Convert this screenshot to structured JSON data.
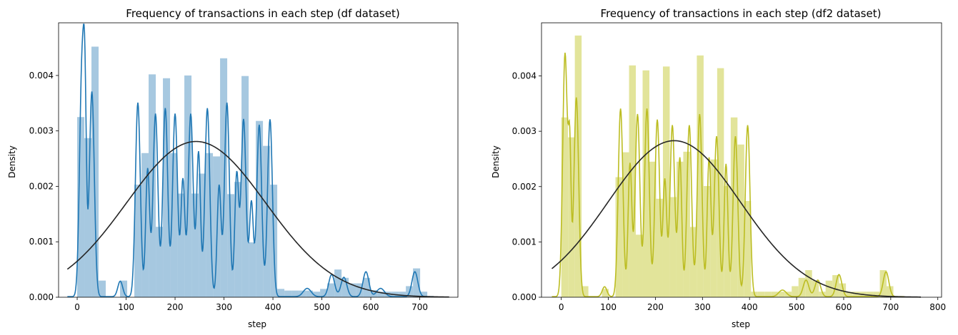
{
  "chart_data": [
    {
      "type": "histogram-with-kde",
      "title": "Frequency of transactions in each step (df dataset)",
      "xlabel": "step",
      "ylabel": "Density",
      "xlim": [
        -38,
        778
      ],
      "ylim": [
        0,
        0.00495
      ],
      "xticks": [
        0,
        100,
        200,
        300,
        400,
        500,
        600,
        700
      ],
      "yticks": [
        0.0,
        0.001,
        0.002,
        0.003,
        0.004
      ],
      "ytick_labels": [
        "0.000",
        "0.001",
        "0.002",
        "0.003",
        "0.004"
      ],
      "hist_color": "#a6c8e0",
      "kde_color": "#1f77b4",
      "normal_color": "#262626",
      "bin_start": 0,
      "bin_width": 14.6,
      "hist_values": [
        0.00325,
        0.00287,
        0.00452,
        0.0003,
        0.0,
        0.0,
        0.0003,
        0.0,
        0.00203,
        0.0026,
        0.00402,
        0.00127,
        0.00395,
        0.0026,
        0.00187,
        0.004,
        0.00187,
        0.00223,
        0.0026,
        0.00254,
        0.00431,
        0.00186,
        0.00208,
        0.00399,
        0.00099,
        0.00318,
        0.00273,
        0.00203,
        0.00015,
        0.00012,
        0.00012,
        0.00012,
        0.00012,
        0.0001,
        0.00015,
        0.00025,
        0.0005,
        0.00035,
        0.00025,
        0.00025,
        0.00035,
        0.00013,
        0.0001,
        0.0001,
        0.0001,
        0.0001,
        0.0002,
        0.00052,
        0.0001
      ],
      "kde_peaks": [
        [
          -10,
          0.0,
          6
        ],
        [
          10,
          0.0042,
          5
        ],
        [
          16,
          0.0023,
          3
        ],
        [
          30,
          0.0037,
          5
        ],
        [
          88,
          0.00028,
          5
        ],
        [
          124,
          0.0035,
          5
        ],
        [
          144,
          0.0023,
          4
        ],
        [
          160,
          0.0033,
          5
        ],
        [
          180,
          0.0034,
          5
        ],
        [
          200,
          0.0033,
          5
        ],
        [
          216,
          0.0021,
          4
        ],
        [
          232,
          0.0033,
          5
        ],
        [
          248,
          0.0026,
          4
        ],
        [
          266,
          0.0034,
          5
        ],
        [
          290,
          0.002,
          4
        ],
        [
          306,
          0.0035,
          5
        ],
        [
          326,
          0.0022,
          4
        ],
        [
          340,
          0.0032,
          5
        ],
        [
          356,
          0.0017,
          4
        ],
        [
          372,
          0.0031,
          5
        ],
        [
          394,
          0.0032,
          5
        ],
        [
          470,
          0.00015,
          8
        ],
        [
          520,
          0.0004,
          6
        ],
        [
          545,
          0.00035,
          6
        ],
        [
          590,
          0.00045,
          6
        ],
        [
          620,
          0.00015,
          8
        ],
        [
          690,
          0.00045,
          6
        ]
      ],
      "normal_mean": 243,
      "normal_sd": 142,
      "normal_range": [
        -20,
        760
      ],
      "kde_range": [
        -20,
        728
      ]
    },
    {
      "type": "histogram-with-kde",
      "title": "Frequency of transactions in each step (df2 dataset)",
      "xlabel": "step",
      "ylabel": "Density",
      "xlim": [
        -42,
        808
      ],
      "ylim": [
        0,
        0.00496
      ],
      "xticks": [
        0,
        100,
        200,
        300,
        400,
        500,
        600,
        700,
        800
      ],
      "yticks": [
        0.0,
        0.001,
        0.002,
        0.003,
        0.004
      ],
      "ytick_labels": [
        "0.000",
        "0.001",
        "0.002",
        "0.003",
        "0.004"
      ],
      "hist_color": "#e2e49a",
      "kde_color": "#bcbd22",
      "normal_color": "#262626",
      "bin_start": 0,
      "bin_width": 14.4,
      "hist_values": [
        0.00325,
        0.00289,
        0.00473,
        0.0002,
        0.0,
        0.0,
        0.00015,
        0.0,
        0.00217,
        0.00262,
        0.00419,
        0.00113,
        0.0041,
        0.00245,
        0.00178,
        0.00417,
        0.00181,
        0.00245,
        0.00263,
        0.00127,
        0.00437,
        0.00201,
        0.00249,
        0.00414,
        0.00201,
        0.00325,
        0.00276,
        0.00174,
        0.0001,
        0.0001,
        0.0001,
        0.0001,
        0.0001,
        0.0001,
        0.0002,
        0.00035,
        0.00049,
        0.0003,
        0.0001,
        0.0003,
        0.0004,
        0.00025,
        0.0001,
        0.0001,
        0.0001,
        0.0001,
        0.0001,
        0.00049,
        0.0002
      ],
      "kde_peaks": [
        [
          8,
          0.0044,
          5
        ],
        [
          18,
          0.0024,
          3
        ],
        [
          32,
          0.0036,
          5
        ],
        [
          92,
          0.00018,
          5
        ],
        [
          126,
          0.0034,
          5
        ],
        [
          146,
          0.0024,
          4
        ],
        [
          162,
          0.0033,
          5
        ],
        [
          182,
          0.0034,
          5
        ],
        [
          204,
          0.0032,
          5
        ],
        [
          220,
          0.0021,
          4
        ],
        [
          236,
          0.0031,
          5
        ],
        [
          252,
          0.0025,
          4
        ],
        [
          272,
          0.0031,
          5
        ],
        [
          294,
          0.0033,
          5
        ],
        [
          314,
          0.0025,
          4
        ],
        [
          330,
          0.0029,
          5
        ],
        [
          350,
          0.0024,
          4
        ],
        [
          370,
          0.0029,
          5
        ],
        [
          396,
          0.0031,
          5
        ],
        [
          470,
          0.00012,
          8
        ],
        [
          520,
          0.0003,
          6
        ],
        [
          545,
          0.0003,
          6
        ],
        [
          590,
          0.0004,
          6
        ],
        [
          690,
          0.00045,
          6
        ]
      ],
      "normal_mean": 240,
      "normal_sd": 141,
      "normal_range": [
        -20,
        765
      ],
      "kde_range": [
        -20,
        728
      ]
    }
  ]
}
